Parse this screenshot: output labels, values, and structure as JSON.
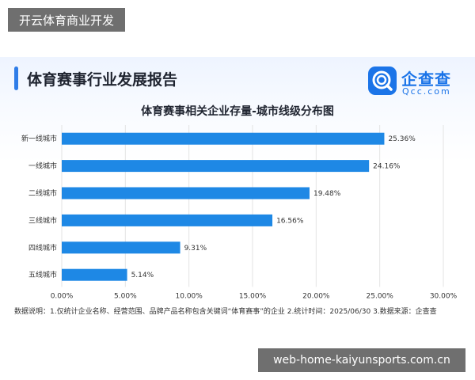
{
  "watermark_top": "开云体育商业开发",
  "watermark_bottom": "web-home-kaiyunsports.com.cn",
  "report_title": "体育赛事行业发展报告",
  "logo": {
    "name": "企查查",
    "sub": "Qcc.com",
    "icon": "qcc-logo-icon",
    "color": "#1b74e8"
  },
  "footnote": "数据说明：1.仅统计企业名称、经营范围、品牌产品名称包含关键词“体育赛事”的企业  2.统计时间：2025/06/30  3.数据来源：企查查",
  "chart_data": {
    "type": "bar",
    "orientation": "horizontal",
    "title": "体育赛事相关企业存量-城市线级分布图",
    "categories": [
      "新一线城市",
      "一线城市",
      "二线城市",
      "三线城市",
      "四线城市",
      "五线城市"
    ],
    "values": [
      25.36,
      24.16,
      19.48,
      16.56,
      9.31,
      5.14
    ],
    "value_labels": [
      "25.36%",
      "24.16%",
      "19.48%",
      "16.56%",
      "9.31%",
      "5.14%"
    ],
    "xlim": [
      0,
      30
    ],
    "x_ticks": [
      0,
      5,
      10,
      15,
      20,
      25,
      30
    ],
    "x_tick_labels": [
      "0.00%",
      "5.00%",
      "10.00%",
      "15.00%",
      "20.00%",
      "25.00%",
      "30.00%"
    ],
    "grid": "vertical",
    "bar_color": "#1e88e5"
  }
}
